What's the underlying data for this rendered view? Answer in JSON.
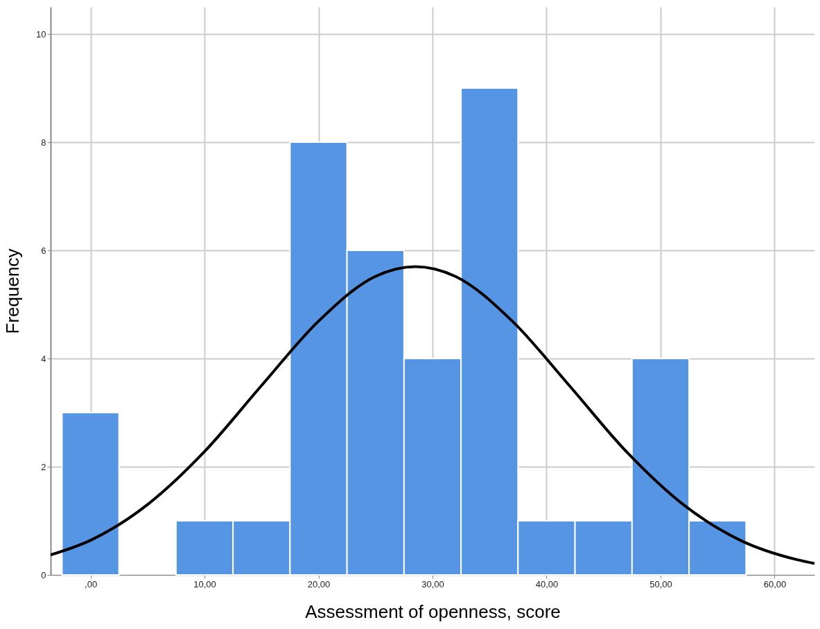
{
  "chart_data": {
    "type": "histogram",
    "xlabel": "Assessment of openness, score",
    "ylabel": "Frequency",
    "bins": [
      -2.5,
      2.5,
      7.5,
      12.5,
      17.5,
      22.5,
      27.5,
      32.5,
      37.5,
      42.5,
      47.5,
      52.5,
      57.5
    ],
    "values": [
      3,
      0,
      1,
      1,
      8,
      6,
      4,
      9,
      1,
      1,
      4,
      1
    ],
    "color": "#5595e3",
    "series": [
      {
        "type": "line",
        "color": "#000000",
        "x": [
          -3.5,
          0,
          5,
          10,
          15,
          20,
          25,
          28.5,
          32,
          37,
          42,
          47,
          52,
          57,
          62,
          63.5
        ],
        "values": [
          0.37,
          0.64,
          1.3,
          2.28,
          3.5,
          4.69,
          5.52,
          5.7,
          5.52,
          4.69,
          3.5,
          2.28,
          1.3,
          0.64,
          0.28,
          0.21
        ]
      }
    ],
    "xlim": [
      -3.5,
      63.5
    ],
    "ylim": [
      0,
      10.5
    ],
    "xticks": [
      {
        "value": 0,
        "label": ",00"
      },
      {
        "value": 10,
        "label": "10,00"
      },
      {
        "value": 20,
        "label": "20,00"
      },
      {
        "value": 30,
        "label": "30,00"
      },
      {
        "value": 40,
        "label": "40,00"
      },
      {
        "value": 50,
        "label": "50,00"
      },
      {
        "value": 60,
        "label": "60,00"
      }
    ],
    "yticks": [
      0,
      2,
      4,
      6,
      8,
      10
    ],
    "grid": true
  }
}
